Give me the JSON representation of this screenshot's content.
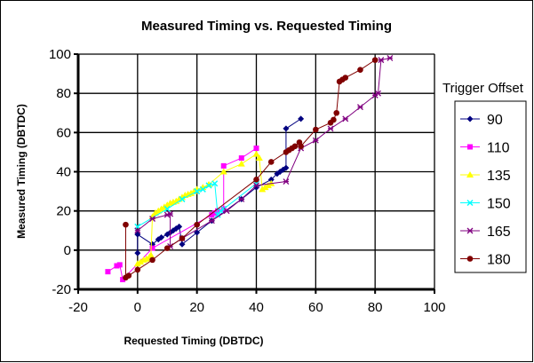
{
  "chart_data": {
    "type": "scatter",
    "title": "Measured Timing vs. Requested Timing",
    "xlabel": "Requested Timing (DBTDC)",
    "ylabel": "Measured Timing (DBTDC)",
    "xlim": [
      -20,
      100
    ],
    "ylim": [
      -20,
      100
    ],
    "xticks": [
      -20,
      0,
      20,
      40,
      60,
      80,
      100
    ],
    "yticks": [
      -20,
      0,
      20,
      40,
      60,
      80,
      100
    ],
    "grid": true,
    "lines_connecting_points": true,
    "legend": {
      "title": "Trigger Offset",
      "placement": "right"
    },
    "series": [
      {
        "name": "90",
        "color": "#000080",
        "marker": "diamond",
        "points": [
          [
            0,
            -1.5
          ],
          [
            0,
            8
          ],
          [
            5,
            3
          ],
          [
            7,
            5.5
          ],
          [
            8,
            6.5
          ],
          [
            10,
            8
          ],
          [
            11,
            9
          ],
          [
            12,
            10
          ],
          [
            13,
            11
          ],
          [
            14,
            12
          ],
          [
            15,
            3
          ],
          [
            20,
            9
          ],
          [
            25,
            15
          ],
          [
            35,
            26
          ],
          [
            40,
            32
          ],
          [
            45,
            36
          ],
          [
            47,
            39
          ],
          [
            48,
            40
          ],
          [
            49,
            41
          ],
          [
            50,
            42
          ],
          [
            50,
            62
          ],
          [
            55,
            67
          ]
        ]
      },
      {
        "name": "110",
        "color": "#FF00FF",
        "marker": "square",
        "points": [
          [
            -10,
            -11
          ],
          [
            -7,
            -8
          ],
          [
            -6,
            -7.5
          ],
          [
            -5,
            -15
          ],
          [
            5,
            1
          ],
          [
            25,
            18
          ],
          [
            26,
            19
          ],
          [
            27,
            20
          ],
          [
            29,
            21
          ],
          [
            29,
            43
          ],
          [
            35,
            47
          ],
          [
            40,
            52
          ]
        ]
      },
      {
        "name": "135",
        "color": "#FFFF00",
        "marker": "triangle",
        "points": [
          [
            0,
            -7
          ],
          [
            1,
            -6
          ],
          [
            2,
            -5
          ],
          [
            3,
            -4.5
          ],
          [
            4,
            -3.5
          ],
          [
            4.5,
            -2.5
          ],
          [
            5,
            17
          ],
          [
            6,
            19
          ],
          [
            7,
            20
          ],
          [
            8,
            21
          ],
          [
            9,
            22
          ],
          [
            10,
            23
          ],
          [
            11,
            24
          ],
          [
            12,
            24.5
          ],
          [
            13,
            25
          ],
          [
            14,
            26
          ],
          [
            15,
            27
          ],
          [
            16,
            28
          ],
          [
            17,
            28.5
          ],
          [
            18,
            29
          ],
          [
            19,
            30
          ],
          [
            20,
            31
          ],
          [
            22,
            32
          ],
          [
            24,
            33.5
          ],
          [
            29,
            40
          ],
          [
            35,
            44
          ],
          [
            40,
            49
          ],
          [
            41,
            47
          ],
          [
            42,
            31
          ],
          [
            43,
            32
          ],
          [
            44,
            33
          ],
          [
            45,
            34
          ]
        ]
      },
      {
        "name": "150",
        "color": "#00FFFF",
        "marker": "x",
        "points": [
          [
            0,
            12
          ],
          [
            10,
            21
          ],
          [
            15,
            26
          ],
          [
            20,
            30
          ],
          [
            22,
            31
          ],
          [
            24,
            33
          ],
          [
            26,
            34
          ],
          [
            27,
            18
          ],
          [
            28,
            20
          ],
          [
            29,
            21
          ],
          [
            40,
            34
          ]
        ]
      },
      {
        "name": "165",
        "color": "#800080",
        "marker": "star",
        "points": [
          [
            0,
            10
          ],
          [
            5,
            16
          ],
          [
            10,
            18
          ],
          [
            11,
            18.5
          ],
          [
            11,
            2
          ],
          [
            15,
            6
          ],
          [
            25,
            15
          ],
          [
            30,
            20
          ],
          [
            35,
            26
          ],
          [
            40,
            33
          ],
          [
            50,
            35
          ],
          [
            55,
            52
          ],
          [
            60,
            56
          ],
          [
            65,
            62
          ],
          [
            70,
            67
          ],
          [
            75,
            73
          ],
          [
            80,
            79
          ],
          [
            81,
            80
          ],
          [
            82,
            97
          ],
          [
            85,
            98
          ]
        ]
      },
      {
        "name": "180",
        "color": "#800000",
        "marker": "circle",
        "points": [
          [
            -4,
            13
          ],
          [
            -4,
            -14
          ],
          [
            -3,
            -13
          ],
          [
            0,
            -10
          ],
          [
            5,
            -5
          ],
          [
            10,
            1
          ],
          [
            15,
            6
          ],
          [
            20,
            13
          ],
          [
            40,
            36
          ],
          [
            45,
            45
          ],
          [
            50,
            50
          ],
          [
            51,
            51
          ],
          [
            52,
            52
          ],
          [
            53,
            53
          ],
          [
            54.5,
            55
          ],
          [
            55,
            53
          ],
          [
            60,
            61.5
          ],
          [
            65,
            65
          ],
          [
            66,
            66.5
          ],
          [
            67,
            70
          ],
          [
            68,
            86
          ],
          [
            69,
            87
          ],
          [
            70,
            88
          ],
          [
            75,
            92
          ],
          [
            80,
            97
          ]
        ]
      }
    ]
  }
}
